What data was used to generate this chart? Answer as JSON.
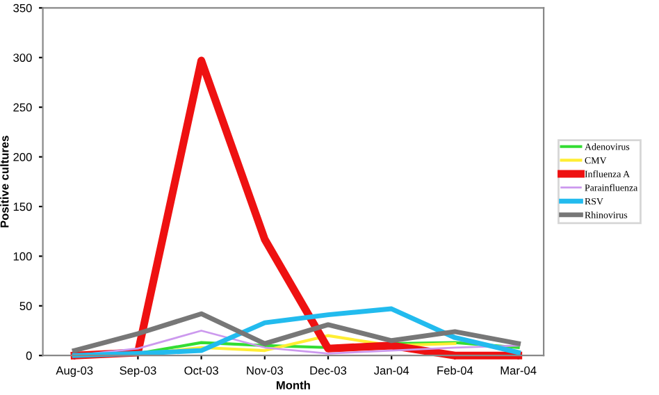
{
  "chart_data": {
    "type": "line",
    "xlabel": "Month",
    "ylabel": "Positive cultures",
    "categories": [
      "Aug-03",
      "Sep-03",
      "Oct-03",
      "Nov-03",
      "Dec-03",
      "Jan-04",
      "Feb-04",
      "Mar-04"
    ],
    "series": [
      {
        "name": "Adenovirus",
        "color": "#33dd33",
        "values": [
          0,
          2,
          13,
          10,
          8,
          12,
          13,
          8
        ]
      },
      {
        "name": "CMV",
        "color": "#ffee33",
        "values": [
          0,
          1,
          8,
          5,
          20,
          10,
          12,
          null
        ]
      },
      {
        "name": "Influenza A",
        "color": "#ee1111",
        "values": [
          0,
          3,
          297,
          117,
          7,
          10,
          0,
          0
        ]
      },
      {
        "name": "Parainfluenza",
        "color": "#cc99ee",
        "values": [
          0,
          7,
          25,
          8,
          2,
          5,
          8,
          10
        ]
      },
      {
        "name": "RSV",
        "color": "#22bbee",
        "values": [
          0,
          2,
          5,
          33,
          41,
          47,
          18,
          3
        ]
      },
      {
        "name": "Rhinovirus",
        "color": "#777777",
        "values": [
          5,
          22,
          42,
          12,
          31,
          15,
          24,
          12
        ]
      }
    ],
    "ylim": [
      0,
      350
    ],
    "yticks": [
      0,
      50,
      100,
      150,
      200,
      250,
      300,
      350
    ],
    "grid": false,
    "legend": "right",
    "marker": "none",
    "line_style": "solid"
  }
}
